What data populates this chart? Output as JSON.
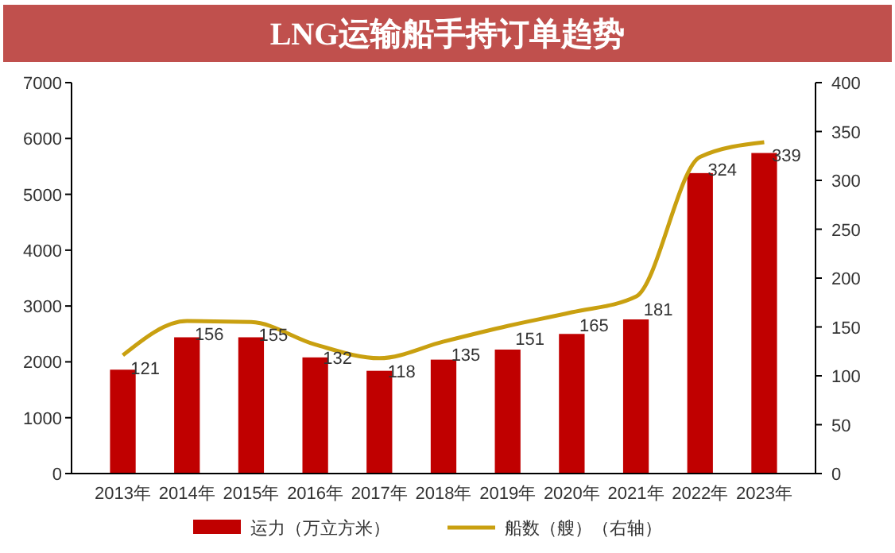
{
  "chart_data": {
    "type": "bar",
    "title": "LNG运输船手持订单趋势",
    "categories": [
      "2013年",
      "2014年",
      "2015年",
      "2016年",
      "2017年",
      "2018年",
      "2019年",
      "2020年",
      "2021年",
      "2022年",
      "2023年"
    ],
    "series": [
      {
        "name": "运力（万立方米）",
        "color": "#c00000",
        "values": [
          1860,
          2440,
          2440,
          2080,
          1840,
          2040,
          2220,
          2500,
          2760,
          5380,
          5740
        ]
      },
      {
        "name": "船数（艘）（右轴）",
        "type": "line",
        "axis": "y2",
        "color": "#c9a010",
        "values": [
          121,
          156,
          155,
          132,
          118,
          135,
          151,
          165,
          181,
          324,
          339
        ],
        "data_labels": true
      }
    ],
    "ylim": [
      0,
      7000
    ],
    "yticks": [
      0,
      1000,
      2000,
      3000,
      4000,
      5000,
      6000,
      7000
    ],
    "y2lim": [
      0,
      400
    ],
    "y2ticks": [
      0,
      50,
      100,
      150,
      200,
      250,
      300,
      350,
      400
    ],
    "legend": "bottom",
    "grid": false
  }
}
